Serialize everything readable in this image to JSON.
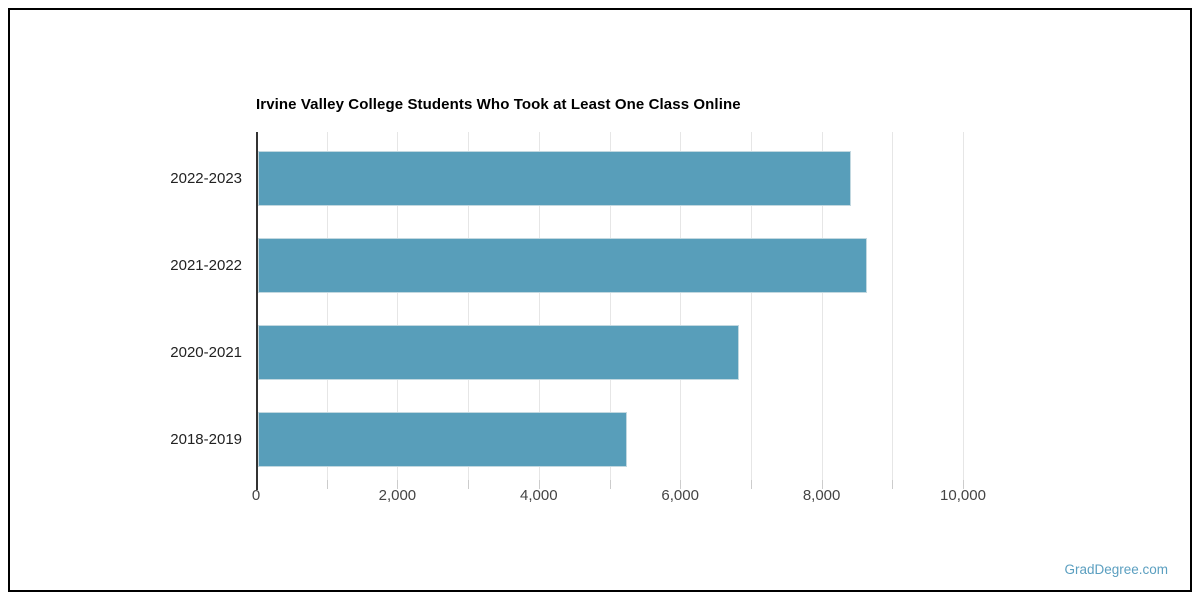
{
  "page": {
    "watermark": "GradDegree.com",
    "background": "#ffffff",
    "border_color": "#000000"
  },
  "chart_data": {
    "type": "bar",
    "orientation": "horizontal",
    "title": "Irvine Valley College Students Who Took at Least One Class Online",
    "categories": [
      "2022-2023",
      "2021-2022",
      "2020-2021",
      "2018-2019"
    ],
    "values": [
      8390,
      8620,
      6810,
      5220
    ],
    "xlabel": "",
    "ylabel": "",
    "xlim": [
      0,
      10000
    ],
    "x_major_ticks": [
      0,
      2000,
      4000,
      6000,
      8000,
      10000
    ],
    "x_tick_labels": [
      "0",
      "2,000",
      "4,000",
      "6,000",
      "8,000",
      "10,000"
    ],
    "x_minor_grid_step": 1000,
    "grid": true,
    "legend": "none",
    "colors": {
      "bar_fill": "#589EBA",
      "bar_stroke": "#c2d8e0",
      "gridline": "#e6e6e6",
      "axis_line": "#333333",
      "tick_label_color": "#444444",
      "category_label_color": "#222222",
      "title_color": "#000000",
      "watermark_color": "#5b9fc0"
    }
  }
}
